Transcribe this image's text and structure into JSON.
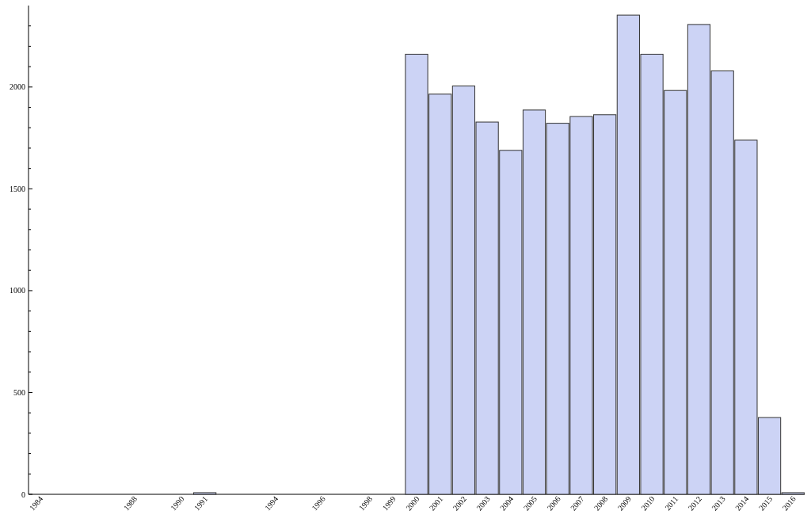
{
  "chart_data": {
    "type": "bar",
    "categories": [
      "1984",
      null,
      null,
      null,
      "1988",
      null,
      "1990",
      "1991",
      null,
      null,
      "1994",
      null,
      "1996",
      null,
      "1998",
      "1999",
      "2000",
      "2001",
      "2002",
      "2003",
      "2004",
      "2005",
      "2006",
      "2007",
      "2008",
      "2009",
      "2010",
      "2011",
      "2012",
      "2013",
      "2014",
      "2015",
      "2016"
    ],
    "values": [
      null,
      null,
      null,
      null,
      null,
      null,
      null,
      8,
      null,
      null,
      null,
      null,
      null,
      null,
      null,
      null,
      2161,
      1965,
      2005,
      1828,
      1689,
      1887,
      1822,
      1855,
      1864,
      2353,
      2161,
      1983,
      2307,
      2079,
      1739,
      377,
      8
    ],
    "color": "#ccd3f5",
    "ylim": [
      0,
      2400
    ],
    "yticks": [
      0,
      {
        "value": 100,
        "label": null
      },
      {
        "value": 200,
        "label": null
      },
      {
        "value": 300,
        "label": null
      },
      {
        "value": 400,
        "label": null
      },
      500,
      {
        "value": 600,
        "label": null
      },
      {
        "value": 700,
        "label": null
      },
      {
        "value": 800,
        "label": null
      },
      {
        "value": 900,
        "label": null
      },
      1000,
      {
        "value": 1100,
        "label": null
      },
      {
        "value": 1200,
        "label": null
      },
      {
        "value": 1300,
        "label": null
      },
      {
        "value": 1400,
        "label": null
      },
      1500,
      {
        "value": 1600,
        "label": null
      },
      {
        "value": 1700,
        "label": null
      },
      {
        "value": 1800,
        "label": null
      },
      {
        "value": 1900,
        "label": null
      },
      2000,
      {
        "value": 2100,
        "label": null
      },
      {
        "value": 2200,
        "label": null
      },
      {
        "value": 2300,
        "label": null
      }
    ],
    "grid": false
  }
}
